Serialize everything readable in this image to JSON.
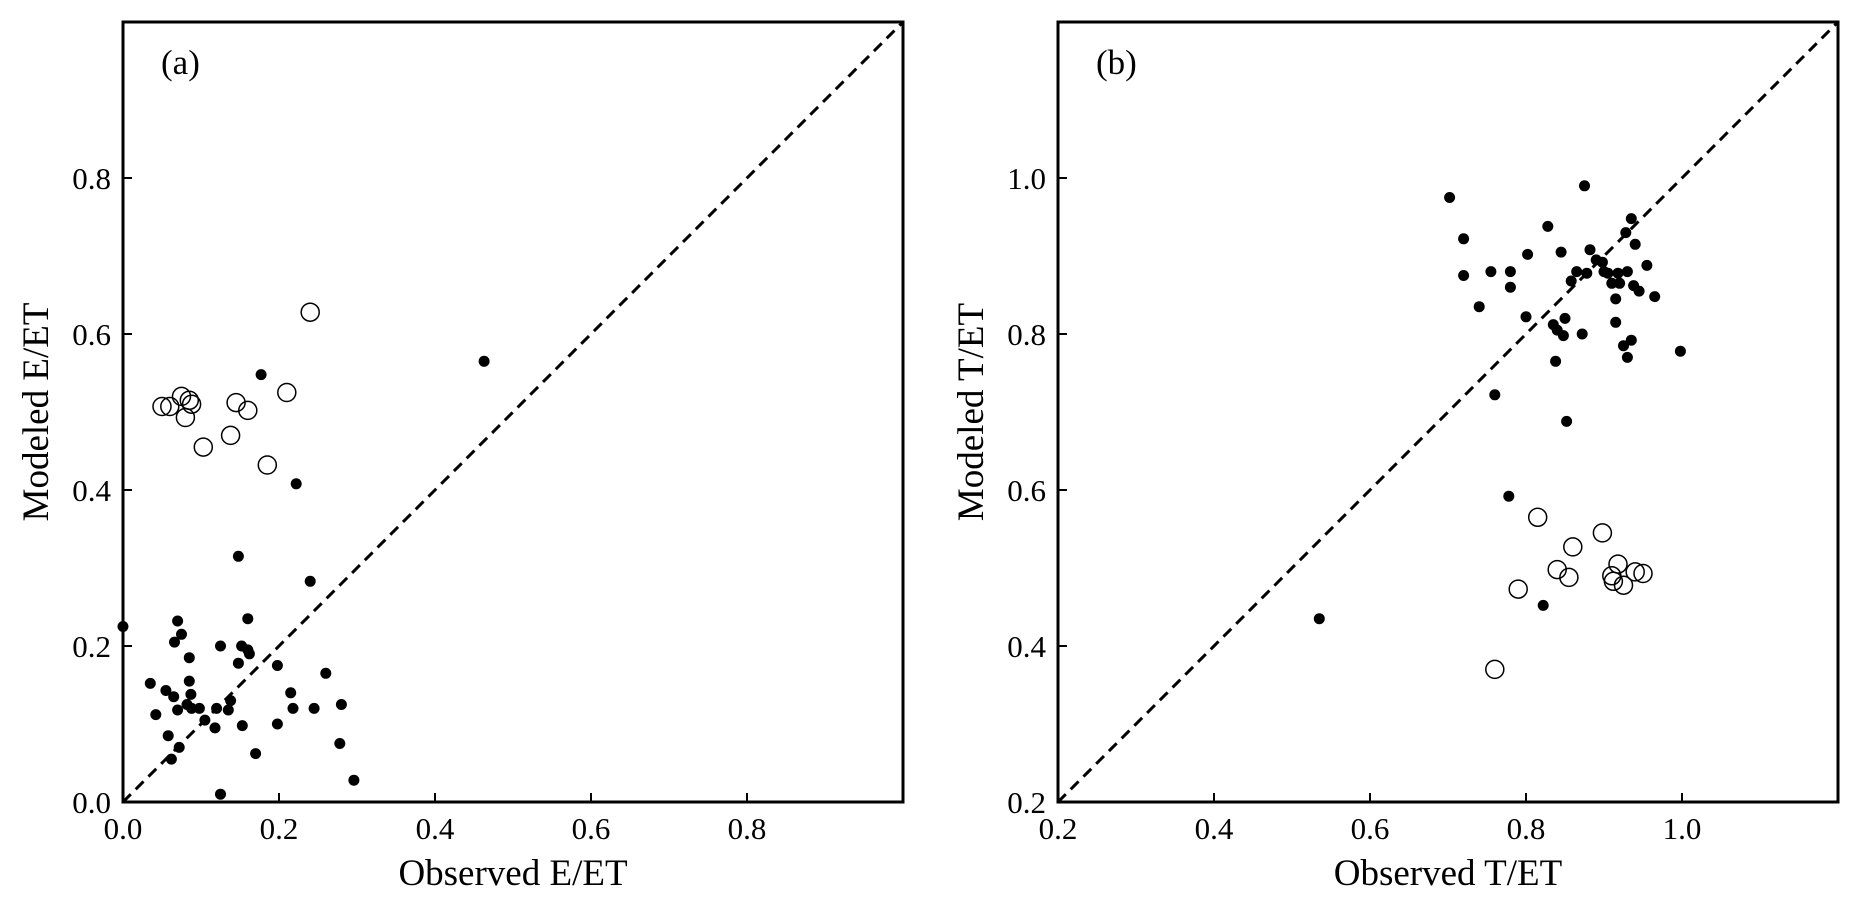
{
  "chart_data": [
    {
      "type": "scatter",
      "panel_label": "(a)",
      "xlabel": "Observed E/ET",
      "ylabel": "Modeled E/ET",
      "xlim": [
        0,
        1.0
      ],
      "ylim": [
        0,
        1.0
      ],
      "xticks": [
        "0.0",
        "0.2",
        "0.4",
        "0.6",
        "0.8"
      ],
      "yticks": [
        "0.0",
        "0.2",
        "0.4",
        "0.6",
        "0.8"
      ],
      "xtick_values": [
        0,
        0.2,
        0.4,
        0.6,
        0.8
      ],
      "ytick_values": [
        0,
        0.2,
        0.4,
        0.6,
        0.8
      ],
      "reference_line": "1:1",
      "grid": false,
      "series": [
        {
          "marker": "filled-circle",
          "color": "#000000",
          "points": [
            [
              0.0,
              0.225
            ],
            [
              0.035,
              0.152
            ],
            [
              0.042,
              0.112
            ],
            [
              0.055,
              0.143
            ],
            [
              0.058,
              0.085
            ],
            [
              0.062,
              0.055
            ],
            [
              0.065,
              0.135
            ],
            [
              0.066,
              0.205
            ],
            [
              0.07,
              0.232
            ],
            [
              0.07,
              0.118
            ],
            [
              0.072,
              0.07
            ],
            [
              0.075,
              0.215
            ],
            [
              0.082,
              0.125
            ],
            [
              0.085,
              0.155
            ],
            [
              0.085,
              0.185
            ],
            [
              0.087,
              0.138
            ],
            [
              0.088,
              0.12
            ],
            [
              0.098,
              0.12
            ],
            [
              0.105,
              0.105
            ],
            [
              0.118,
              0.095
            ],
            [
              0.12,
              0.12
            ],
            [
              0.125,
              0.2
            ],
            [
              0.125,
              0.01
            ],
            [
              0.135,
              0.118
            ],
            [
              0.138,
              0.13
            ],
            [
              0.148,
              0.178
            ],
            [
              0.148,
              0.315
            ],
            [
              0.152,
              0.2
            ],
            [
              0.153,
              0.098
            ],
            [
              0.16,
              0.195
            ],
            [
              0.16,
              0.235
            ],
            [
              0.162,
              0.19
            ],
            [
              0.17,
              0.062
            ],
            [
              0.177,
              0.548
            ],
            [
              0.198,
              0.175
            ],
            [
              0.198,
              0.1
            ],
            [
              0.215,
              0.14
            ],
            [
              0.218,
              0.12
            ],
            [
              0.222,
              0.408
            ],
            [
              0.24,
              0.283
            ],
            [
              0.245,
              0.12
            ],
            [
              0.26,
              0.165
            ],
            [
              0.278,
              0.075
            ],
            [
              0.28,
              0.125
            ],
            [
              0.296,
              0.028
            ],
            [
              0.463,
              0.565
            ]
          ]
        },
        {
          "marker": "open-circle",
          "color": "#000000",
          "points": [
            [
              0.05,
              0.507
            ],
            [
              0.06,
              0.507
            ],
            [
              0.075,
              0.52
            ],
            [
              0.08,
              0.493
            ],
            [
              0.085,
              0.515
            ],
            [
              0.088,
              0.51
            ],
            [
              0.103,
              0.455
            ],
            [
              0.138,
              0.47
            ],
            [
              0.145,
              0.512
            ],
            [
              0.16,
              0.502
            ],
            [
              0.185,
              0.432
            ],
            [
              0.21,
              0.525
            ],
            [
              0.24,
              0.628
            ]
          ]
        }
      ]
    },
    {
      "type": "scatter",
      "panel_label": "(b)",
      "xlabel": "Observed T/ET",
      "ylabel": "Modeled T/ET",
      "xlim": [
        0.2,
        1.2
      ],
      "ylim": [
        0.2,
        1.2
      ],
      "xticks": [
        "0.2",
        "0.4",
        "0.6",
        "0.8",
        "1.0"
      ],
      "yticks": [
        "0.2",
        "0.4",
        "0.6",
        "0.8",
        "1.0"
      ],
      "xtick_values": [
        0.2,
        0.4,
        0.6,
        0.8,
        1.0
      ],
      "ytick_values": [
        0.2,
        0.4,
        0.6,
        0.8,
        1.0
      ],
      "reference_line": "1:1",
      "grid": false,
      "series": [
        {
          "marker": "filled-circle",
          "color": "#000000",
          "points": [
            [
              0.535,
              0.435
            ],
            [
              0.702,
              0.975
            ],
            [
              0.72,
              0.922
            ],
            [
              0.72,
              0.875
            ],
            [
              0.74,
              0.835
            ],
            [
              0.755,
              0.88
            ],
            [
              0.76,
              0.722
            ],
            [
              0.778,
              0.592
            ],
            [
              0.78,
              0.88
            ],
            [
              0.78,
              0.86
            ],
            [
              0.8,
              0.822
            ],
            [
              0.802,
              0.902
            ],
            [
              0.822,
              0.452
            ],
            [
              0.828,
              0.938
            ],
            [
              0.835,
              0.812
            ],
            [
              0.838,
              0.765
            ],
            [
              0.84,
              0.805
            ],
            [
              0.845,
              0.905
            ],
            [
              0.848,
              0.798
            ],
            [
              0.85,
              0.82
            ],
            [
              0.852,
              0.688
            ],
            [
              0.858,
              0.868
            ],
            [
              0.865,
              0.88
            ],
            [
              0.872,
              0.8
            ],
            [
              0.875,
              0.99
            ],
            [
              0.878,
              0.878
            ],
            [
              0.882,
              0.908
            ],
            [
              0.89,
              0.895
            ],
            [
              0.898,
              0.892
            ],
            [
              0.9,
              0.88
            ],
            [
              0.905,
              0.878
            ],
            [
              0.91,
              0.865
            ],
            [
              0.915,
              0.815
            ],
            [
              0.915,
              0.845
            ],
            [
              0.918,
              0.878
            ],
            [
              0.92,
              0.865
            ],
            [
              0.925,
              0.785
            ],
            [
              0.928,
              0.93
            ],
            [
              0.93,
              0.77
            ],
            [
              0.93,
              0.88
            ],
            [
              0.935,
              0.792
            ],
            [
              0.935,
              0.948
            ],
            [
              0.938,
              0.862
            ],
            [
              0.94,
              0.915
            ],
            [
              0.945,
              0.855
            ],
            [
              0.955,
              0.888
            ],
            [
              0.965,
              0.848
            ],
            [
              0.998,
              0.778
            ]
          ]
        },
        {
          "marker": "open-circle",
          "color": "#000000",
          "points": [
            [
              0.76,
              0.37
            ],
            [
              0.79,
              0.473
            ],
            [
              0.815,
              0.565
            ],
            [
              0.84,
              0.498
            ],
            [
              0.855,
              0.488
            ],
            [
              0.86,
              0.527
            ],
            [
              0.898,
              0.545
            ],
            [
              0.91,
              0.49
            ],
            [
              0.912,
              0.483
            ],
            [
              0.918,
              0.505
            ],
            [
              0.925,
              0.478
            ],
            [
              0.94,
              0.495
            ],
            [
              0.95,
              0.493
            ]
          ]
        }
      ]
    }
  ]
}
